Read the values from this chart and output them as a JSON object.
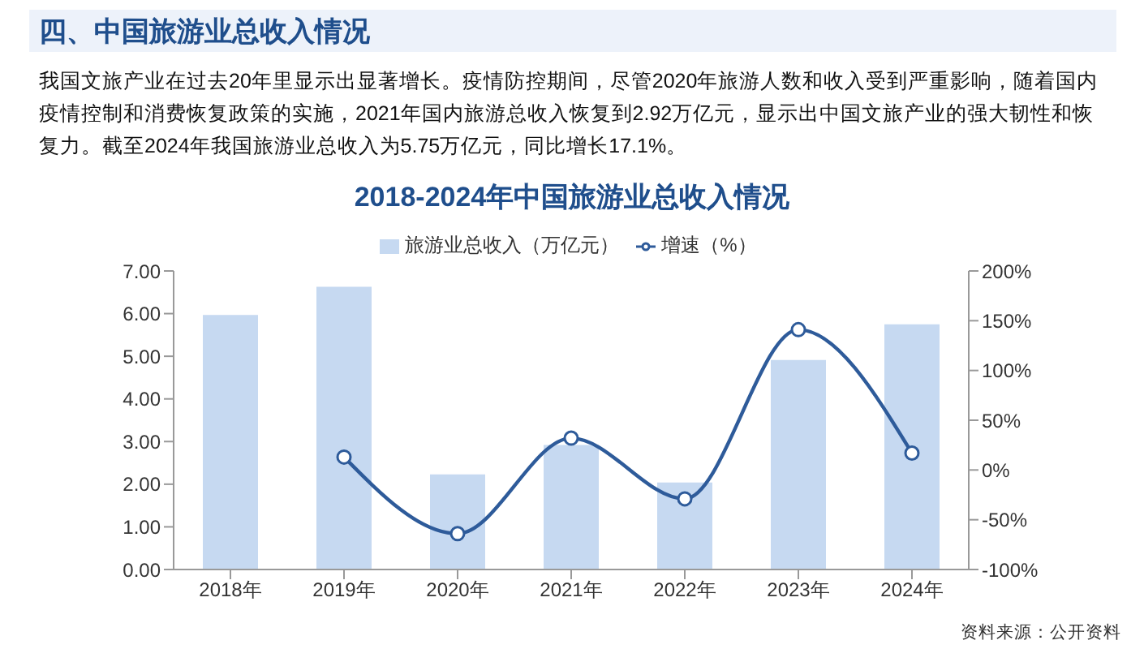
{
  "chart_data": {
    "type": "bar",
    "title": "2018-2024年中国旅游业总收入情况",
    "annotations": [
      "四、中国旅游业总收入情况",
      "我国文旅产业在过去20年里显示出显著增长。疫情防控期间，尽管2020年旅游人数和收入受到严重影响，随着国内疫情控制和消费恢复政策的实施，2021年国内旅游总收入恢复到2.92万亿元，显示出中国文旅产业的强大韧性和恢复力。截至2024年我国旅游业总收入为5.75万亿元，同比增长17.1%。",
      "资料来源：公开资料"
    ],
    "categories": [
      "2018年",
      "2019年",
      "2020年",
      "2021年",
      "2022年",
      "2023年",
      "2024年"
    ],
    "series": [
      {
        "name": "旅游业总收入（万亿元）",
        "color": "#c6d9f1",
        "values": [
          5.97,
          6.63,
          2.23,
          2.92,
          2.04,
          4.91,
          5.75
        ]
      },
      {
        "name": "增速（%）",
        "type": "line",
        "axis": "y2",
        "color": "#2e5b9a",
        "marker": "circle",
        "values": [
          null,
          13,
          -64,
          32,
          -29,
          141,
          17
        ]
      }
    ],
    "ylim": [
      0,
      7
    ],
    "yticks": [
      {
        "value": 0,
        "label": "0.00"
      },
      {
        "value": 1,
        "label": "1.00"
      },
      {
        "value": 2,
        "label": "2.00"
      },
      {
        "value": 3,
        "label": "3.00"
      },
      {
        "value": 4,
        "label": "4.00"
      },
      {
        "value": 5,
        "label": "5.00"
      },
      {
        "value": 6,
        "label": "6.00"
      },
      {
        "value": 7,
        "label": "7.00"
      }
    ],
    "y2lim": [
      -100,
      200
    ],
    "y2ticks": [
      {
        "value": -100,
        "label": "-100%"
      },
      {
        "value": -50,
        "label": "-50%"
      },
      {
        "value": 0,
        "label": "0%"
      },
      {
        "value": 50,
        "label": "50%"
      },
      {
        "value": 100,
        "label": "100%"
      },
      {
        "value": 150,
        "label": "150%"
      },
      {
        "value": 200,
        "label": "200%"
      }
    ],
    "legend": "top"
  }
}
